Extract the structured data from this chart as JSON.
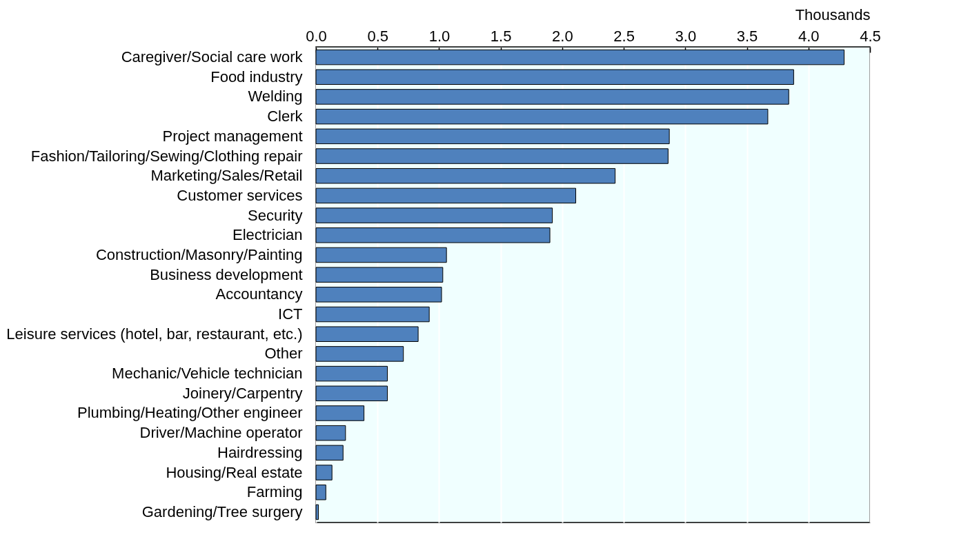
{
  "chart_data": {
    "type": "bar",
    "orientation": "horizontal",
    "xlabel": "Thousands",
    "categories": [
      "Caregiver/Social care work",
      "Food industry",
      "Welding",
      "Clerk",
      "Project management",
      "Fashion/Tailoring/Sewing/Clothing repair",
      "Marketing/Sales/Retail",
      "Customer services",
      "Security",
      "Electrician",
      "Construction/Masonry/Painting",
      "Business development",
      "Accountancy",
      "ICT",
      "Leisure services (hotel, bar, restaurant, etc.)",
      "Other",
      "Mechanic/Vehicle technician",
      "Joinery/Carpentry",
      "Plumbing/Heating/Other engineer",
      "Driver/Machine operator",
      "Hairdressing",
      "Housing/Real estate",
      "Farming",
      "Gardening/Tree surgery"
    ],
    "values": [
      4.29,
      3.88,
      3.84,
      3.67,
      2.87,
      2.86,
      2.43,
      2.11,
      1.92,
      1.9,
      1.06,
      1.03,
      1.02,
      0.92,
      0.83,
      0.71,
      0.58,
      0.58,
      0.39,
      0.24,
      0.22,
      0.13,
      0.08,
      0.02
    ],
    "color": "#4f81bd",
    "xlim": [
      0,
      4.5
    ],
    "xticks": [
      {
        "value": 0,
        "label": "0.0"
      },
      0.5,
      {
        "value": 1,
        "label": "1.0"
      },
      1.5,
      {
        "value": 2,
        "label": "2.0"
      },
      2.5,
      {
        "value": 3,
        "label": "3.0"
      },
      3.5,
      {
        "value": 4,
        "label": "4.0"
      },
      4.5
    ],
    "grid": "x"
  }
}
